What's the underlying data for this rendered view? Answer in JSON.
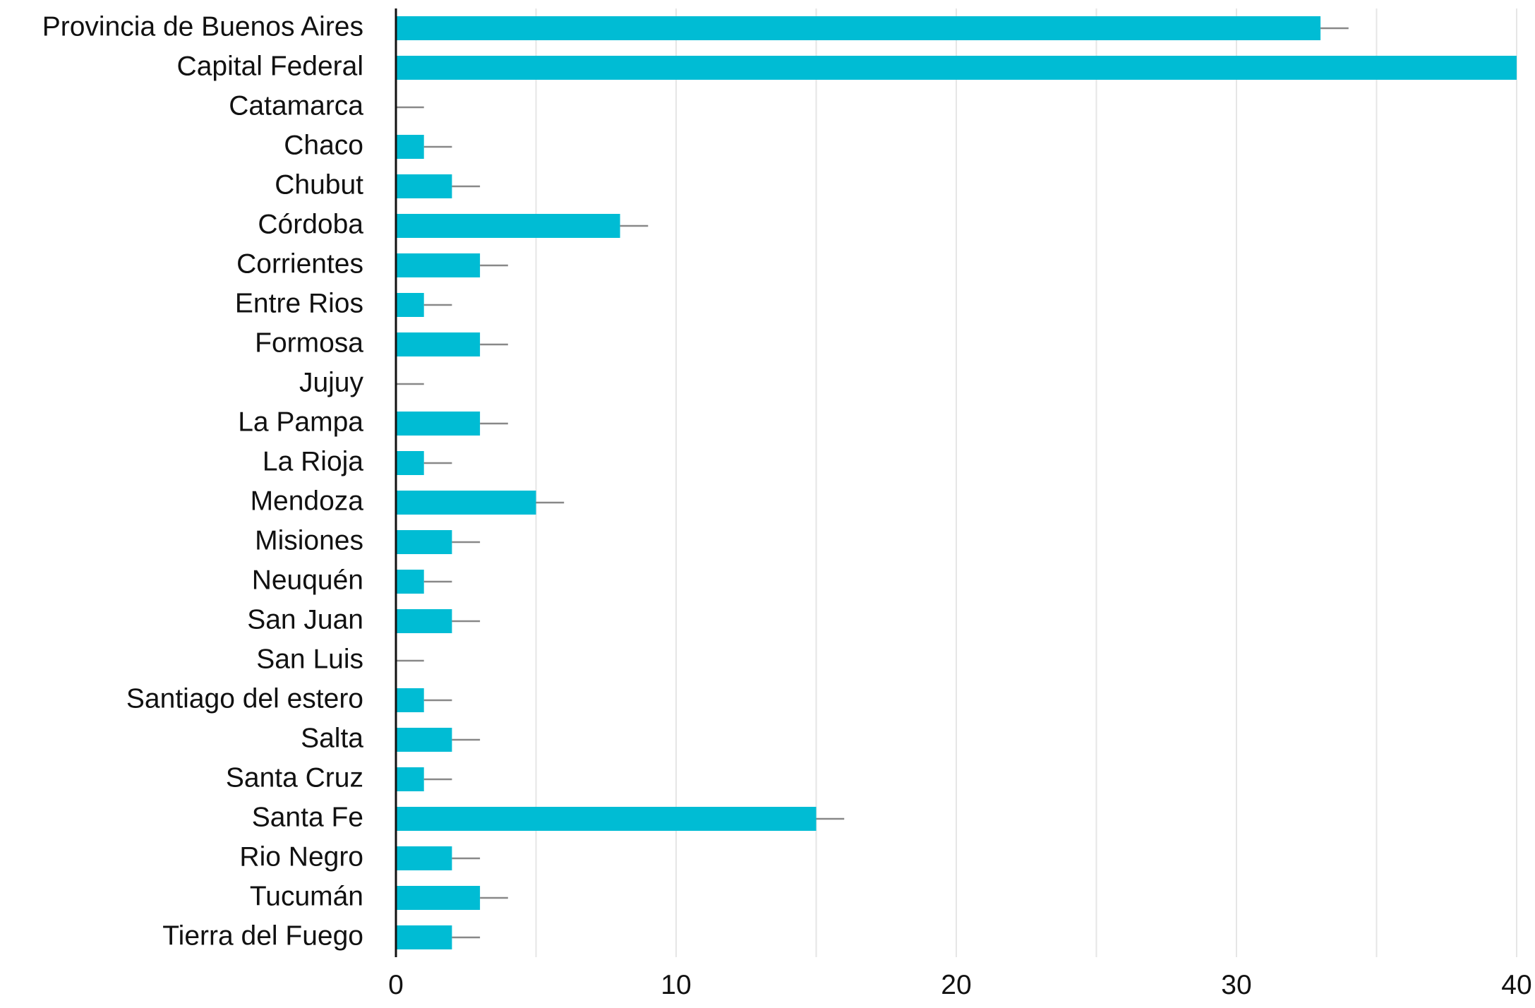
{
  "chart_data": {
    "type": "bar",
    "orientation": "horizontal",
    "title": "",
    "xlabel": "",
    "ylabel": "",
    "categories": [
      "Provincia de Buenos Aires",
      "Capital Federal",
      "Catamarca",
      "Chaco",
      "Chubut",
      "Córdoba",
      "Corrientes",
      "Entre Rios",
      "Formosa",
      "Jujuy",
      "La Pampa",
      "La Rioja",
      "Mendoza",
      "Misiones",
      "Neuquén",
      "San Juan",
      "San Luis",
      "Santiago del estero",
      "Salta",
      "Santa Cruz",
      "Santa Fe",
      "Rio Negro",
      "Tucumán",
      "Tierra del Fuego"
    ],
    "values": [
      33,
      40,
      0,
      1,
      2,
      8,
      3,
      1,
      3,
      0,
      3,
      1,
      5,
      2,
      1,
      2,
      0,
      1,
      2,
      1,
      15,
      2,
      3,
      2
    ],
    "error_upper": [
      1,
      0,
      1,
      1,
      1,
      1,
      1,
      1,
      1,
      1,
      1,
      1,
      1,
      1,
      1,
      1,
      1,
      1,
      1,
      1,
      1,
      1,
      1,
      1
    ],
    "xlim": [
      0,
      40
    ],
    "xticks": [
      "0",
      "10",
      "20",
      "30",
      "40"
    ],
    "grid": true,
    "bar_color": "#00bcd4",
    "error_color": "#888888",
    "grid_color": "#e6e6e6",
    "axis_color": "#111111"
  }
}
